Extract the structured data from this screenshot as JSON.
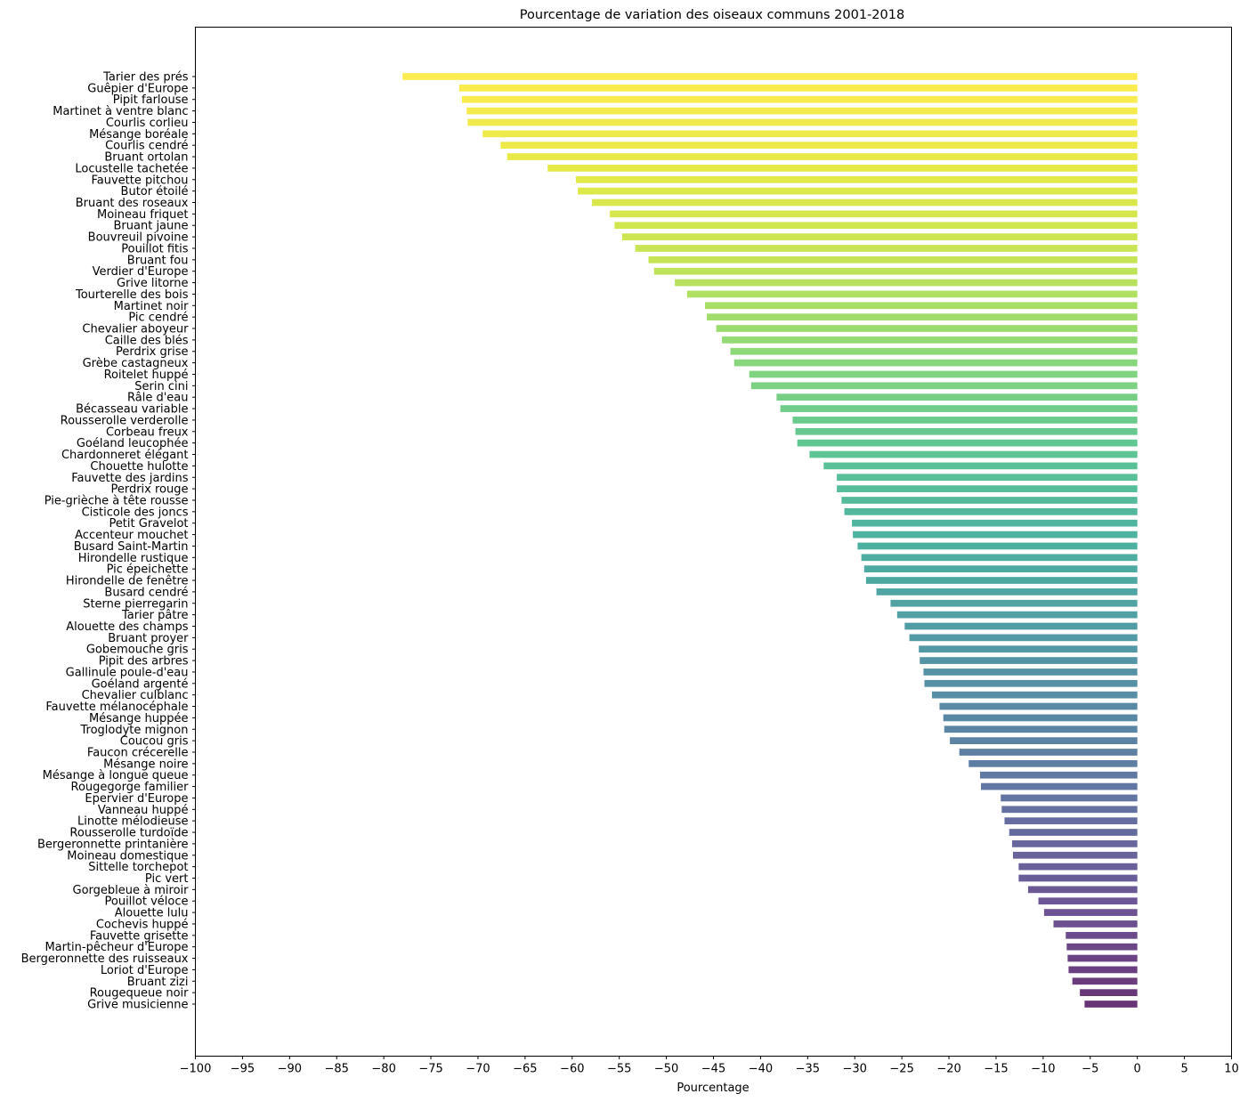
{
  "chart_data": {
    "type": "bar",
    "orientation": "horizontal",
    "title": "Pourcentage de variation des oiseaux communs 2001-2018",
    "xlabel": "Pourcentage",
    "ylabel": "",
    "xlim": [
      -100,
      10
    ],
    "xticks": [
      -100,
      -95,
      -90,
      -85,
      -80,
      -75,
      -70,
      -65,
      -60,
      -55,
      -50,
      -45,
      -40,
      -35,
      -30,
      -25,
      -20,
      -15,
      -10,
      -5,
      0,
      5,
      10
    ],
    "xtick_labels": [
      "−100",
      "−95",
      "−90",
      "−85",
      "−80",
      "−75",
      "−70",
      "−65",
      "−60",
      "−55",
      "−50",
      "−45",
      "−40",
      "−35",
      "−30",
      "−25",
      "−20",
      "−15",
      "−10",
      "−5",
      "0",
      "5",
      "10"
    ],
    "grid": false,
    "colormap": "viridis",
    "categories": [
      "Tarier des prés",
      "Guêpier d'Europe",
      "Pipit farlouse",
      "Martinet à ventre blanc",
      "Courlis corlieu",
      "Mésange boréale",
      "Courlis cendré",
      "Bruant ortolan",
      "Locustelle tachetée",
      "Fauvette pitchou",
      "Butor étoilé",
      "Bruant des roseaux",
      "Moineau friquet",
      "Bruant jaune",
      "Bouvreuil pivoine",
      "Pouillot fitis",
      "Bruant fou",
      "Verdier d'Europe",
      "Grive litorne",
      "Tourterelle des bois",
      "Martinet noir",
      "Pic cendré",
      "Chevalier aboyeur",
      "Caille des blés",
      "Perdrix grise",
      "Grèbe castagneux",
      "Roitelet huppé",
      "Serin cini",
      "Râle d'eau",
      "Bécasseau variable",
      "Rousserolle verderolle",
      "Corbeau freux",
      "Goéland leucophée",
      "Chardonneret élégant",
      "Chouette hulotte",
      "Fauvette des jardins",
      "Perdrix rouge",
      "Pie-grièche à tête rousse",
      "Cisticole des joncs",
      "Petit Gravelot",
      "Accenteur mouchet",
      "Busard Saint-Martin",
      "Hirondelle rustique",
      "Pic épeichette",
      "Hirondelle de fenêtre",
      "Busard cendré",
      "Sterne pierregarin",
      "Tarier pâtre",
      "Alouette des champs",
      "Bruant proyer",
      "Gobemouche gris",
      "Pipit des arbres",
      "Gallinule poule-d'eau",
      "Goéland argenté",
      "Chevalier culblanc",
      "Fauvette mélanocéphale",
      "Mésange huppée",
      "Troglodyte mignon",
      "Coucou gris",
      "Faucon crécerelle",
      "Mésange noire",
      "Mésange à longue queue",
      "Rougegorge familier",
      "Epervier d'Europe",
      "Vanneau huppé",
      "Linotte mélodieuse",
      "Rousserolle turdoïde",
      "Bergeronnette printanière",
      "Moineau domestique",
      "Sittelle torchepot",
      "Pic vert",
      "Gorgebleue à miroir",
      "Pouillot véloce",
      "Alouette lulu",
      "Cochevis huppé",
      "Fauvette grisette",
      "Martin-pêcheur d'Europe",
      "Bergeronnette des ruisseaux",
      "Loriot d'Europe",
      "Bruant zizi",
      "Rougequeue noir",
      "Grive musicienne"
    ],
    "values": [
      -78.0,
      -72.0,
      -71.7,
      -71.2,
      -71.1,
      -69.5,
      -67.6,
      -66.9,
      -62.6,
      -59.6,
      -59.4,
      -57.9,
      -56.0,
      -55.5,
      -54.7,
      -53.3,
      -51.9,
      -51.3,
      -49.1,
      -47.8,
      -45.9,
      -45.7,
      -44.7,
      -44.1,
      -43.2,
      -42.8,
      -41.2,
      -41.0,
      -38.3,
      -37.9,
      -36.6,
      -36.3,
      -36.1,
      -34.8,
      -33.3,
      -31.9,
      -31.9,
      -31.4,
      -31.1,
      -30.3,
      -30.2,
      -29.7,
      -29.3,
      -29.0,
      -28.8,
      -27.7,
      -26.2,
      -25.5,
      -24.7,
      -24.2,
      -23.2,
      -23.1,
      -22.7,
      -22.6,
      -21.8,
      -21.0,
      -20.6,
      -20.5,
      -19.9,
      -18.9,
      -17.9,
      -16.7,
      -16.6,
      -14.5,
      -14.4,
      -14.1,
      -13.6,
      -13.3,
      -13.2,
      -12.6,
      -12.6,
      -11.6,
      -10.5,
      -9.9,
      -8.9,
      -7.6,
      -7.5,
      -7.4,
      -7.3,
      -6.9,
      -6.1,
      -5.6
    ]
  }
}
